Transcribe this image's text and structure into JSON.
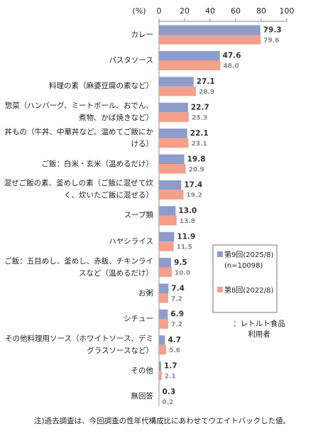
{
  "chart_data": {
    "type": "hbar",
    "xlabel": "(%)",
    "xlim": [
      0,
      100
    ],
    "xticks": [
      0,
      20,
      40,
      60,
      80,
      100
    ],
    "categories": [
      "カレー",
      "パスタソース",
      "料理の素（麻婆豆腐の素など）",
      "惣菜（ハンバーグ、ミートボール、おでん、煮物、かば焼きなど）",
      "丼もの（牛丼、中華丼など。温めてご飯にかける）",
      "ご飯：白米・玄米（温めるだけ）",
      "混ぜご飯の素、釜めしの素（ご飯に混ぜて炊く、炊いたご飯に混ぜる）",
      "スープ類",
      "ハヤシライス",
      "ご飯：五目めし、釜めし、赤飯、チキンライスなど（温めるだけ）",
      "お粥",
      "シチュー",
      "その他料理用ソース（ホワイトソース、デミグラスソースなど）",
      "その他",
      "無回答"
    ],
    "series": [
      {
        "name": "第9回(2025/8)\n(n=10098)",
        "color": "#8e9ccb",
        "values": [
          79.3,
          47.6,
          27.1,
          22.7,
          22.1,
          19.8,
          17.4,
          13.0,
          11.9,
          9.5,
          7.4,
          6.9,
          4.7,
          1.7,
          0.3
        ],
        "value_labels": [
          "79.3",
          "47.6",
          "27.1",
          "22.7",
          "22.1",
          "19.8",
          "17.4",
          "13.0",
          "11.9",
          "9.5",
          "7.4",
          "6.9",
          "4.7",
          "1.7",
          "0.3"
        ]
      },
      {
        "name": "第8回(2022/8)",
        "color": "#f4a08a",
        "values": [
          79.6,
          48.0,
          28.9,
          23.3,
          23.1,
          20.9,
          19.2,
          13.8,
          11.5,
          10.0,
          7.2,
          7.2,
          5.6,
          2.1,
          0.2
        ],
        "value_labels": [
          "79.6",
          "48.0",
          "28.9",
          "23.3",
          "23.1",
          "20.9",
          "19.2",
          "13.8",
          "11.5",
          "10.0",
          "7.2",
          "7.2",
          "5.6",
          "2.1",
          "0.2"
        ]
      }
    ],
    "annotation": "：レトルト食品\n利用者",
    "note": "注)過去調査は、今回調査の性年代構成比にあわせてウエイトバックした値。"
  }
}
